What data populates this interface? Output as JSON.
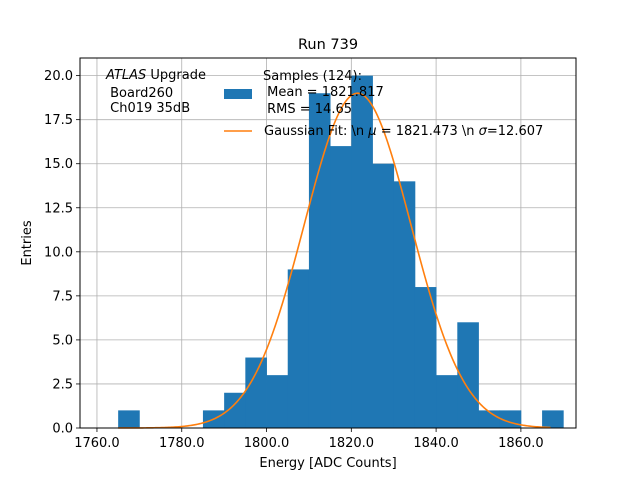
{
  "chart_data": {
    "type": "bar",
    "title": "Run 739",
    "xlabel": "Energy [ADC Counts]",
    "ylabel": "Entries",
    "xlim": [
      1756,
      1873
    ],
    "ylim": [
      0,
      21
    ],
    "grid": true,
    "x_ticks": [
      "1760.0",
      "1780.0",
      "1800.0",
      "1820.0",
      "1840.0",
      "1860.0"
    ],
    "y_ticks": [
      "0.0",
      "2.5",
      "5.0",
      "7.5",
      "10.0",
      "12.5",
      "15.0",
      "17.5",
      "20.0"
    ],
    "bins": [
      {
        "x0": 1765,
        "x1": 1770,
        "y": 1
      },
      {
        "x0": 1785,
        "x1": 1790,
        "y": 1
      },
      {
        "x0": 1790,
        "x1": 1795,
        "y": 2
      },
      {
        "x0": 1795,
        "x1": 1800,
        "y": 4
      },
      {
        "x0": 1800,
        "x1": 1805,
        "y": 3
      },
      {
        "x0": 1805,
        "x1": 1810,
        "y": 9
      },
      {
        "x0": 1810,
        "x1": 1815,
        "y": 19
      },
      {
        "x0": 1815,
        "x1": 1820,
        "y": 16
      },
      {
        "x0": 1820,
        "x1": 1825,
        "y": 20
      },
      {
        "x0": 1825,
        "x1": 1830,
        "y": 15
      },
      {
        "x0": 1830,
        "x1": 1835,
        "y": 14
      },
      {
        "x0": 1835,
        "x1": 1840,
        "y": 8
      },
      {
        "x0": 1840,
        "x1": 1845,
        "y": 3
      },
      {
        "x0": 1845,
        "x1": 1850,
        "y": 6
      },
      {
        "x0": 1850,
        "x1": 1855,
        "y": 1
      },
      {
        "x0": 1855,
        "x1": 1860,
        "y": 1
      },
      {
        "x0": 1865,
        "x1": 1870,
        "y": 1
      }
    ],
    "gaussian_fit": {
      "mu": 1821.473,
      "sigma": 12.607,
      "amplitude": 19,
      "x_range": [
        1765,
        1867
      ]
    },
    "series": [
      {
        "name": "Samples (124):\n Mean = 1821.817\n RMS = 14.65",
        "color": "#1f77b4",
        "kind": "histogram"
      },
      {
        "name": "Gaussian Fit: \\n $\\mu$ = 1821.473 \\n $\\sigma$=12.607",
        "color": "#ff7f0e",
        "kind": "line"
      }
    ],
    "legend": {
      "placement": "upper-right",
      "samples_lines": [
        "Samples (124):",
        " Mean = 1821.817",
        " RMS = 14.65"
      ],
      "fit_text_prefix": "Gaussian Fit: \\n ",
      "fit_mu_symbol": "μ",
      "fit_mu_text": " = 1821.473 \\n ",
      "fit_sigma_symbol": "σ",
      "fit_sigma_text": "=12.607"
    },
    "annotation": {
      "atlas": "ATLAS",
      "upgrade": " Upgrade",
      "lines": [
        " Board260",
        " Ch019 35dB"
      ]
    }
  }
}
